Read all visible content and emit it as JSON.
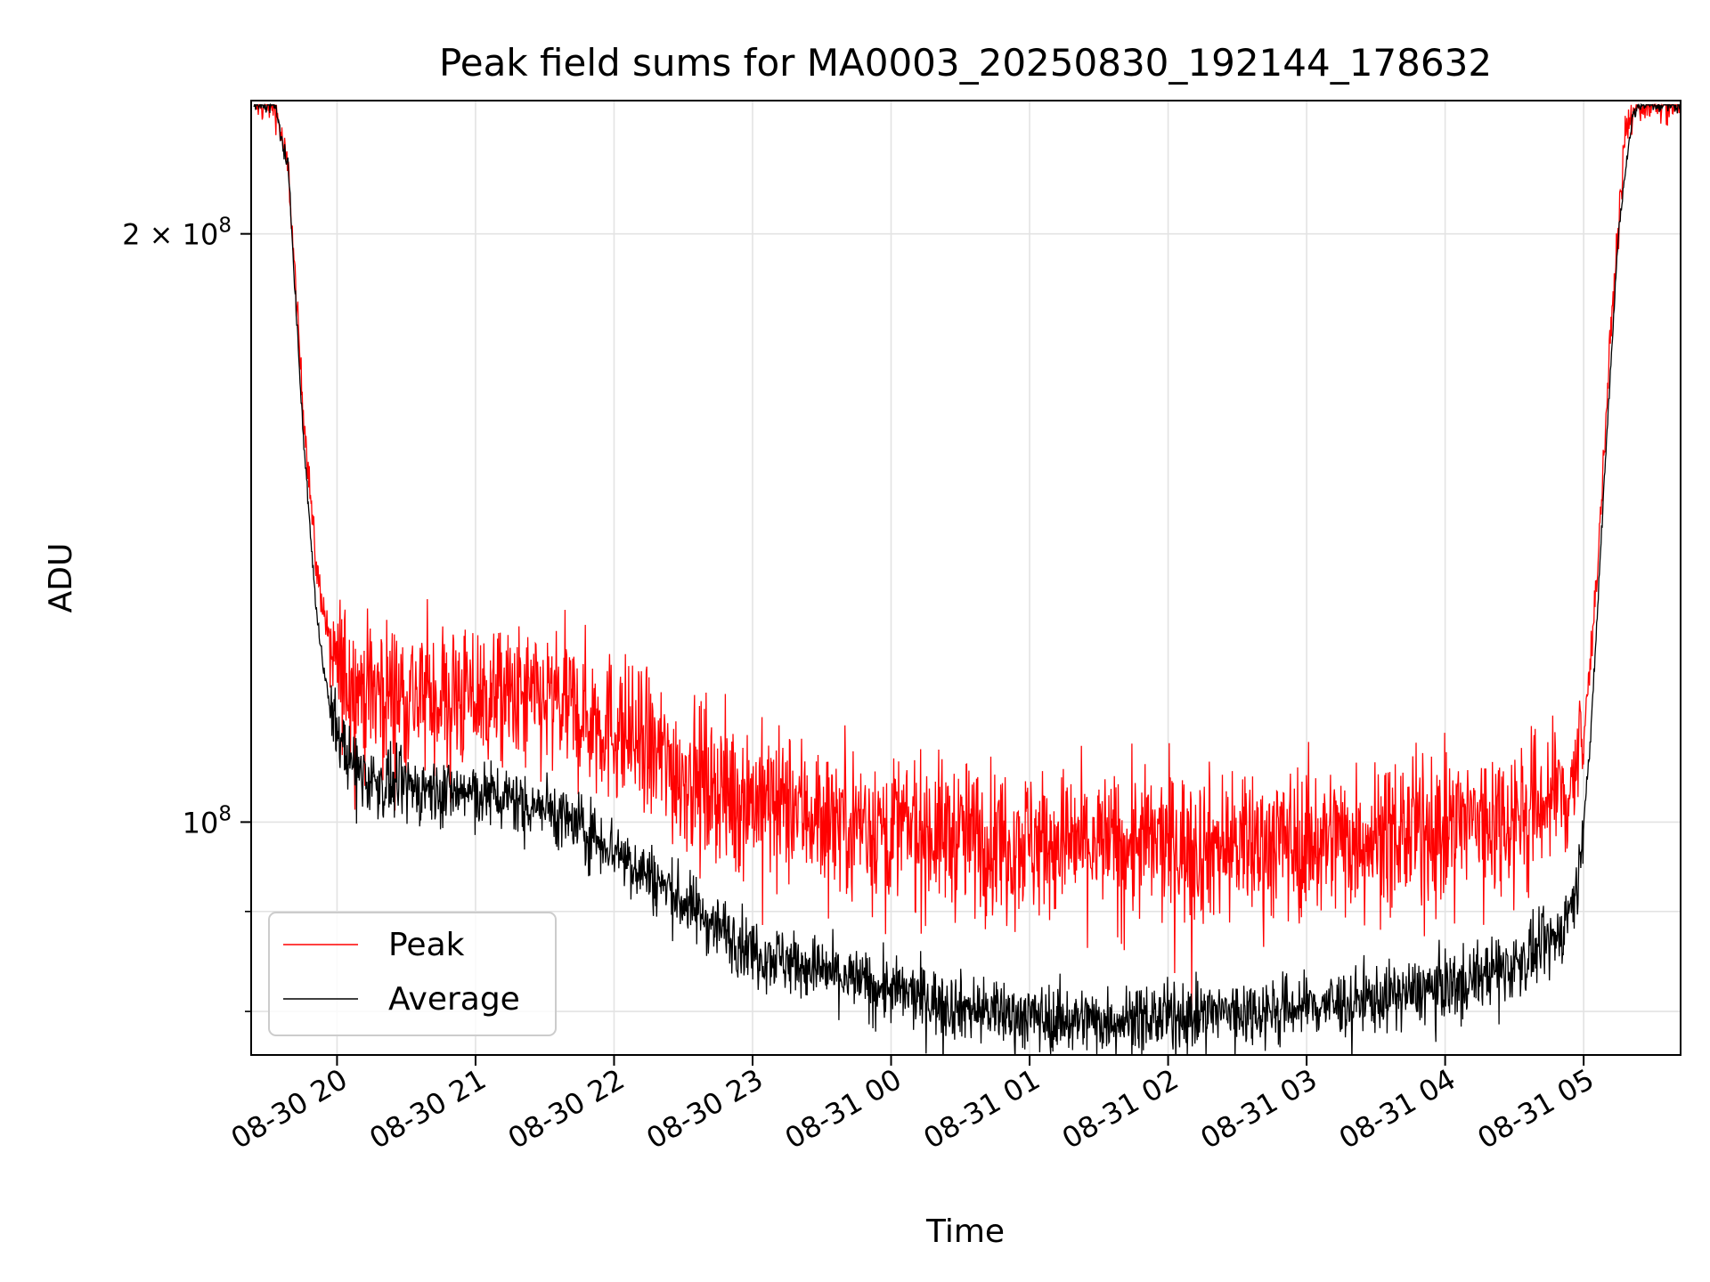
{
  "chart_data": {
    "type": "line",
    "title": "Peak field sums for MA0003_20250830_192144_178632",
    "xlabel": "Time",
    "ylabel": "ADU",
    "yscale": "log",
    "ylim": [
      76000000,
      234000000
    ],
    "xlim_hours": [
      -0.62,
      9.7
    ],
    "x_unit": "hours since 08-30 20:00",
    "grid": true,
    "legend_position": "lower-left",
    "x_ticks": [
      {
        "value": 0,
        "label": "08-30 20"
      },
      {
        "value": 1,
        "label": "08-30 21"
      },
      {
        "value": 2,
        "label": "08-30 22"
      },
      {
        "value": 3,
        "label": "08-30 23"
      },
      {
        "value": 4,
        "label": "08-31 00"
      },
      {
        "value": 5,
        "label": "08-31 01"
      },
      {
        "value": 6,
        "label": "08-31 02"
      },
      {
        "value": 7,
        "label": "08-31 03"
      },
      {
        "value": 8,
        "label": "08-31 04"
      },
      {
        "value": 9,
        "label": "08-31 05"
      }
    ],
    "y_major_ticks": [
      {
        "value": 100000000,
        "base": "10",
        "exp": "8",
        "coef": ""
      },
      {
        "value": 200000000,
        "base": "10",
        "exp": "8",
        "coef": "2 × "
      }
    ],
    "y_minor_ticks": [
      80000000,
      90000000
    ],
    "series": [
      {
        "name": "Peak",
        "color": "#ff0000",
        "noise_fraction": 0.045,
        "points": [
          {
            "x": -0.6,
            "y": 233000000
          },
          {
            "x": -0.45,
            "y": 233000000
          },
          {
            "x": -0.35,
            "y": 215000000
          },
          {
            "x": -0.25,
            "y": 165000000
          },
          {
            "x": -0.15,
            "y": 135000000
          },
          {
            "x": -0.05,
            "y": 123000000
          },
          {
            "x": 0.0,
            "y": 120000000
          },
          {
            "x": 0.2,
            "y": 117000000
          },
          {
            "x": 0.5,
            "y": 116500000
          },
          {
            "x": 1.0,
            "y": 116000000
          },
          {
            "x": 1.3,
            "y": 115500000
          },
          {
            "x": 1.6,
            "y": 115000000
          },
          {
            "x": 2.0,
            "y": 112000000
          },
          {
            "x": 2.5,
            "y": 106000000
          },
          {
            "x": 3.0,
            "y": 103000000
          },
          {
            "x": 3.5,
            "y": 101000000
          },
          {
            "x": 4.0,
            "y": 99500000
          },
          {
            "x": 4.5,
            "y": 98500000
          },
          {
            "x": 5.0,
            "y": 98000000
          },
          {
            "x": 5.5,
            "y": 97500000
          },
          {
            "x": 6.0,
            "y": 97500000
          },
          {
            "x": 6.5,
            "y": 97500000
          },
          {
            "x": 7.0,
            "y": 98000000
          },
          {
            "x": 7.5,
            "y": 98500000
          },
          {
            "x": 8.0,
            "y": 99500000
          },
          {
            "x": 8.5,
            "y": 101000000
          },
          {
            "x": 8.9,
            "y": 104000000
          },
          {
            "x": 9.0,
            "y": 110000000
          },
          {
            "x": 9.1,
            "y": 135000000
          },
          {
            "x": 9.2,
            "y": 180000000
          },
          {
            "x": 9.3,
            "y": 225000000
          },
          {
            "x": 9.38,
            "y": 233000000
          },
          {
            "x": 9.7,
            "y": 233000000
          }
        ]
      },
      {
        "name": "Average",
        "color": "#000000",
        "noise_fraction": 0.02,
        "points": [
          {
            "x": -0.6,
            "y": 233000000
          },
          {
            "x": -0.45,
            "y": 233000000
          },
          {
            "x": -0.35,
            "y": 215000000
          },
          {
            "x": -0.25,
            "y": 160000000
          },
          {
            "x": -0.15,
            "y": 128000000
          },
          {
            "x": -0.05,
            "y": 114000000
          },
          {
            "x": 0.1,
            "y": 107000000
          },
          {
            "x": 0.3,
            "y": 104500000
          },
          {
            "x": 0.6,
            "y": 104000000
          },
          {
            "x": 1.0,
            "y": 103500000
          },
          {
            "x": 1.5,
            "y": 102000000
          },
          {
            "x": 2.0,
            "y": 97000000
          },
          {
            "x": 2.5,
            "y": 91000000
          },
          {
            "x": 3.0,
            "y": 86000000
          },
          {
            "x": 3.5,
            "y": 84000000
          },
          {
            "x": 4.0,
            "y": 82000000
          },
          {
            "x": 4.5,
            "y": 80500000
          },
          {
            "x": 5.0,
            "y": 79500000
          },
          {
            "x": 5.5,
            "y": 79200000
          },
          {
            "x": 6.0,
            "y": 79500000
          },
          {
            "x": 6.5,
            "y": 80000000
          },
          {
            "x": 7.0,
            "y": 80500000
          },
          {
            "x": 7.5,
            "y": 81200000
          },
          {
            "x": 8.0,
            "y": 82500000
          },
          {
            "x": 8.5,
            "y": 84500000
          },
          {
            "x": 8.8,
            "y": 87000000
          },
          {
            "x": 8.95,
            "y": 92000000
          },
          {
            "x": 9.05,
            "y": 110000000
          },
          {
            "x": 9.15,
            "y": 150000000
          },
          {
            "x": 9.25,
            "y": 200000000
          },
          {
            "x": 9.35,
            "y": 230000000
          },
          {
            "x": 9.4,
            "y": 233000000
          },
          {
            "x": 9.7,
            "y": 233000000
          }
        ]
      }
    ]
  }
}
